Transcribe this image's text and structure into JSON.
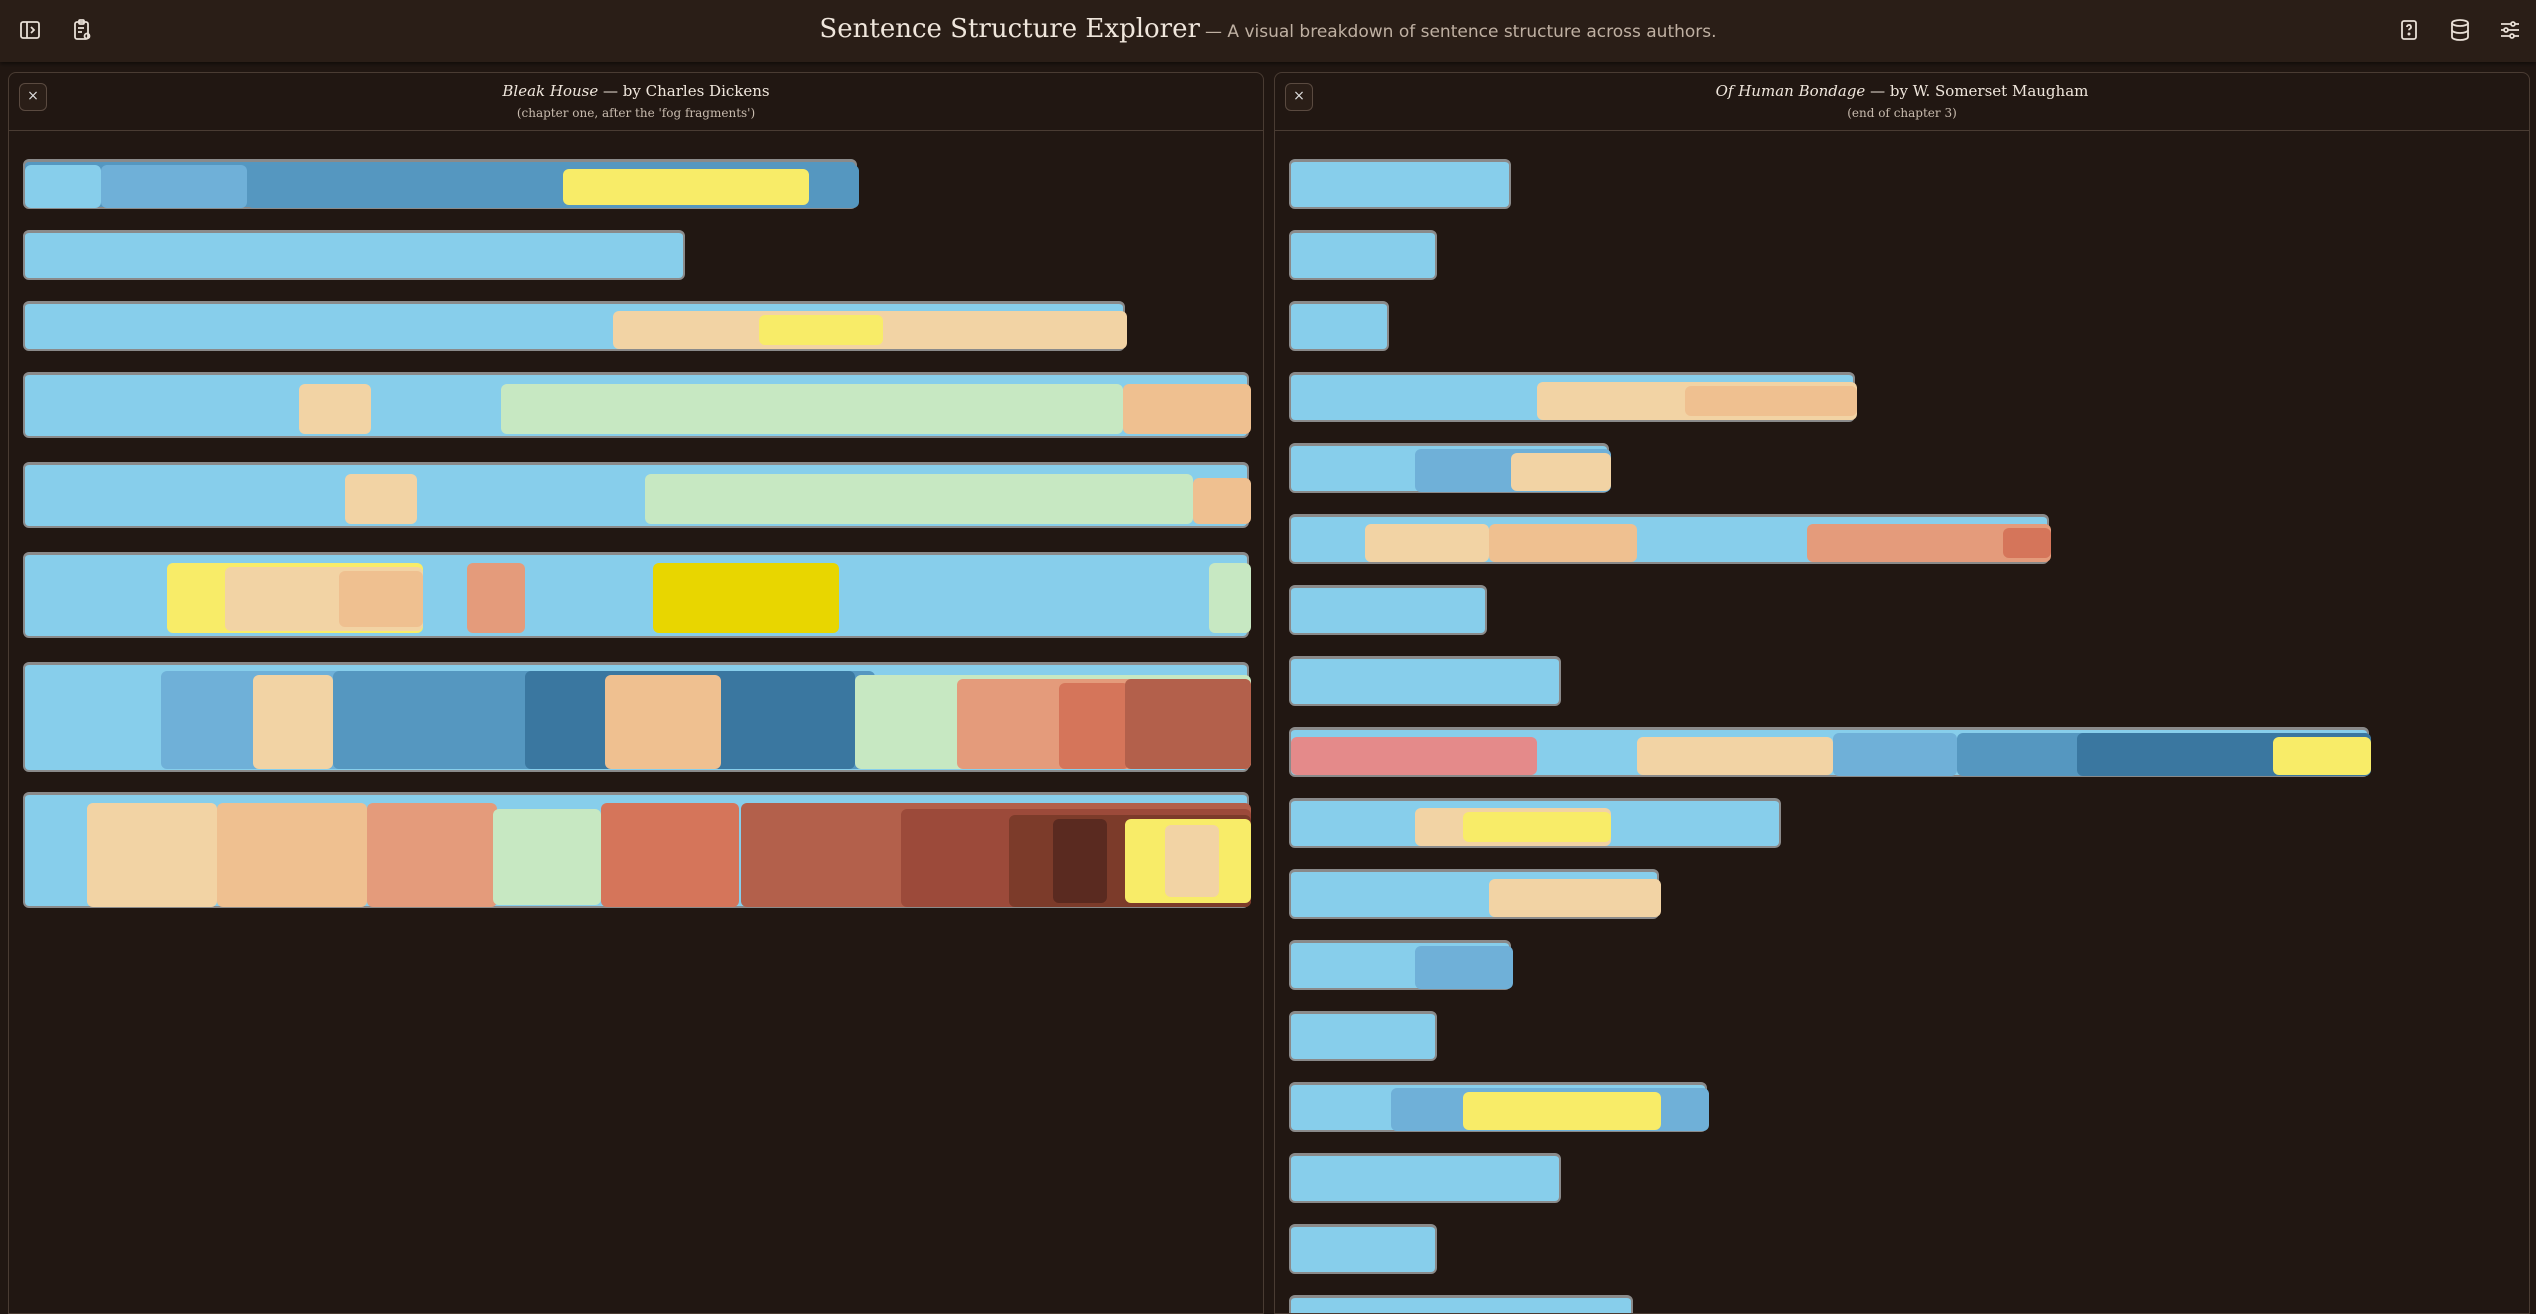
{
  "app": {
    "title": "Sentence Structure Explorer",
    "subtitle": "— A visual breakdown of sentence structure across authors."
  },
  "toolbar": {
    "left_icons": [
      "sidebar-toggle-icon",
      "clipboard-settings-icon"
    ],
    "right_icons": [
      "help-book-icon",
      "database-icon",
      "sliders-icon"
    ]
  },
  "colors": {
    "background": "#211712",
    "topbar": "#2a1e17",
    "clause_light_blue": "#87ceeb",
    "clause_mid_blue": "#6fb0d8",
    "clause_blue": "#5597c0",
    "clause_dark_blue": "#3a77a0",
    "phrase_cream": "#f2d3a4",
    "phrase_peach": "#efc090",
    "phrase_salmon": "#e49b7b",
    "phrase_coral": "#d5755a",
    "phrase_brick": "#b3604b",
    "phrase_rust": "#9c4a3a",
    "phrase_brown": "#7c3b2a",
    "phrase_dark_brown": "#5a2a20",
    "modifier_yellow": "#f8ec68",
    "modifier_gold": "#e8d600",
    "green": "#c7e8c2",
    "pink": "#e48a8a"
  },
  "panels": [
    {
      "close_label": "×",
      "book": "Bleak House",
      "by": " — by Charles Dickens",
      "note": "(chapter one, after the 'fog fragments')"
    },
    {
      "close_label": "×",
      "book": "Of Human Bondage",
      "by": " — by W. Somerset Maugham",
      "note": "(end of chapter 3)"
    }
  ]
}
